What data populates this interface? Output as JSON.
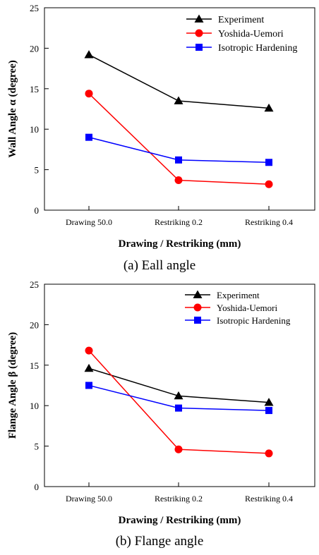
{
  "chart_data": [
    {
      "type": "line",
      "categories": [
        "Drawing 50.0",
        "Restriking 0.2",
        "Restriking 0.4"
      ],
      "series": [
        {
          "name": "Experiment",
          "values": [
            19.2,
            13.5,
            12.6
          ],
          "color": "#000000",
          "marker": "triangle"
        },
        {
          "name": "Yoshida-Uemori",
          "values": [
            14.4,
            3.7,
            3.2
          ],
          "color": "#ff0000",
          "marker": "circle"
        },
        {
          "name": "Isotropic Hardening",
          "values": [
            9.0,
            6.2,
            5.9
          ],
          "color": "#0000ff",
          "marker": "square"
        }
      ],
      "xlabel": "Drawing / Restriking  (mm)",
      "ylabel": "Wall Angle α (degree)",
      "ylim": [
        0,
        25
      ],
      "yticks": [
        "0",
        "5",
        "10",
        "15",
        "20",
        "25"
      ],
      "legend": "top-right",
      "grid": false,
      "caption": "(a) Eall angle"
    },
    {
      "type": "line",
      "categories": [
        "Drawing 50.0",
        "Restriking 0.2",
        "Restriking 0.4"
      ],
      "series": [
        {
          "name": "Experiment",
          "values": [
            14.6,
            11.2,
            10.4
          ],
          "color": "#000000",
          "marker": "triangle"
        },
        {
          "name": "Yoshida-Uemori",
          "values": [
            16.8,
            4.6,
            4.1
          ],
          "color": "#ff0000",
          "marker": "circle"
        },
        {
          "name": "Isotropic Hardening",
          "values": [
            12.5,
            9.7,
            9.4
          ],
          "color": "#0000ff",
          "marker": "square"
        }
      ],
      "xlabel": "Drawing / Restriking  (mm)",
      "ylabel": "Flange Angle β (degree)",
      "ylim": [
        0,
        25
      ],
      "yticks": [
        "0",
        "5",
        "10",
        "15",
        "20",
        "25"
      ],
      "legend": "top-right",
      "grid": false,
      "caption": "(b) Flange angle"
    }
  ]
}
